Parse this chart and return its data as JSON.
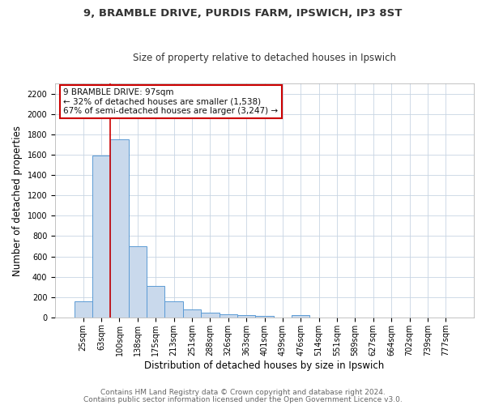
{
  "title1": "9, BRAMBLE DRIVE, PURDIS FARM, IPSWICH, IP3 8ST",
  "title2": "Size of property relative to detached houses in Ipswich",
  "xlabel": "Distribution of detached houses by size in Ipswich",
  "ylabel": "Number of detached properties",
  "bin_labels": [
    "25sqm",
    "63sqm",
    "100sqm",
    "138sqm",
    "175sqm",
    "213sqm",
    "251sqm",
    "288sqm",
    "326sqm",
    "363sqm",
    "401sqm",
    "439sqm",
    "476sqm",
    "514sqm",
    "551sqm",
    "589sqm",
    "627sqm",
    "664sqm",
    "702sqm",
    "739sqm",
    "777sqm"
  ],
  "bin_values": [
    160,
    1590,
    1750,
    700,
    310,
    155,
    80,
    50,
    30,
    20,
    15,
    2,
    20,
    0,
    0,
    0,
    0,
    0,
    0,
    0,
    0
  ],
  "bar_color": "#c9d9ec",
  "bar_edge_color": "#5b9bd5",
  "annotation_text": "9 BRAMBLE DRIVE: 97sqm\n← 32% of detached houses are smaller (1,538)\n67% of semi-detached houses are larger (3,247) →",
  "annotation_box_color": "#ffffff",
  "annotation_box_edge": "#cc0000",
  "ylim": [
    0,
    2300
  ],
  "yticks": [
    0,
    200,
    400,
    600,
    800,
    1000,
    1200,
    1400,
    1600,
    1800,
    2000,
    2200
  ],
  "grid_color": "#c8d4e3",
  "footer1": "Contains HM Land Registry data © Crown copyright and database right 2024.",
  "footer2": "Contains public sector information licensed under the Open Government Licence v3.0.",
  "title_fontsize": 9.5,
  "subtitle_fontsize": 8.5,
  "axis_label_fontsize": 8.5,
  "tick_fontsize": 7,
  "annotation_fontsize": 7.5,
  "footer_fontsize": 6.5
}
